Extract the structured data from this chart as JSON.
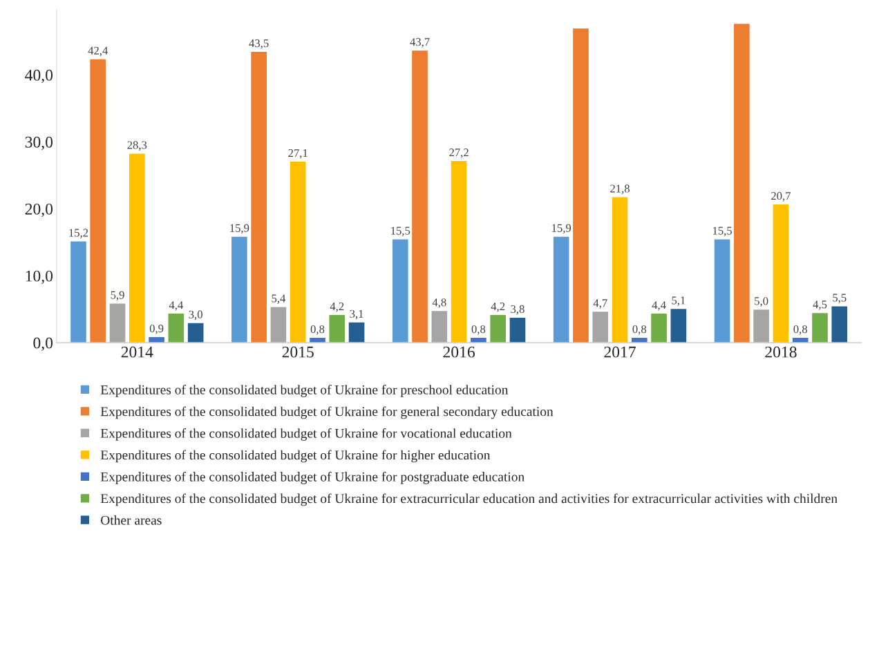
{
  "chart_data": {
    "type": "bar",
    "categories": [
      "2014",
      "2015",
      "2016",
      "2017",
      "2018"
    ],
    "series": [
      {
        "name": "Expenditures of the consolidated budget of Ukraine for preschool education",
        "color": "#5b9bd5",
        "values": [
          15.2,
          15.9,
          15.5,
          15.9,
          15.5
        ],
        "value_labels": [
          "15,2",
          "15,9",
          "15,5",
          "15,9",
          "15,5"
        ]
      },
      {
        "name": "Expenditures of the consolidated budget of Ukraine for general secondary education",
        "color": "#ed7d31",
        "values": [
          42.4,
          43.5,
          43.7,
          47.0,
          47.7
        ],
        "value_labels": [
          "42,4",
          "43,5",
          "43,7",
          null,
          null
        ]
      },
      {
        "name": "Expenditures of the consolidated budget of Ukraine for vocational education",
        "color": "#a5a5a5",
        "values": [
          5.9,
          5.4,
          4.8,
          4.7,
          5.0
        ],
        "value_labels": [
          "5,9",
          "5,4",
          "4,8",
          "4,7",
          "5,0"
        ]
      },
      {
        "name": "Expenditures of the consolidated budget of Ukraine for higher education",
        "color": "#ffc000",
        "values": [
          28.3,
          27.1,
          27.2,
          21.8,
          20.7
        ],
        "value_labels": [
          "28,3",
          "27,1",
          "27,2",
          "21,8",
          "20,7"
        ]
      },
      {
        "name": "Expenditures of the consolidated budget of Ukraine for postgraduate education",
        "color": "#4472c4",
        "values": [
          0.9,
          0.8,
          0.8,
          0.8,
          0.8
        ],
        "value_labels": [
          "0,9",
          "0,8",
          "0,8",
          "0,8",
          "0,8"
        ]
      },
      {
        "name": "Expenditures of the consolidated budget of Ukraine for extracurricular education and activities for extracurricular activities with children",
        "color": "#70ad47",
        "values": [
          4.4,
          4.2,
          4.2,
          4.4,
          4.5
        ],
        "value_labels": [
          "4,4",
          "4,2",
          "4,2",
          "4,4",
          "4,5"
        ]
      },
      {
        "name": "Other areas",
        "color": "#255e91",
        "values": [
          3.0,
          3.1,
          3.8,
          5.1,
          5.5
        ],
        "value_labels": [
          "3,0",
          "3,1",
          "3,8",
          "5,1",
          "5,5"
        ]
      }
    ],
    "ylim": [
      0,
      49.7
    ],
    "yticks": [
      {
        "value": 0,
        "label": "0,0"
      },
      {
        "value": 10,
        "label": "10,0"
      },
      {
        "value": 20,
        "label": "20,0"
      },
      {
        "value": 30,
        "label": "30,0"
      },
      {
        "value": 40,
        "label": "40,0"
      }
    ],
    "grid": false,
    "legend": "bottom"
  }
}
